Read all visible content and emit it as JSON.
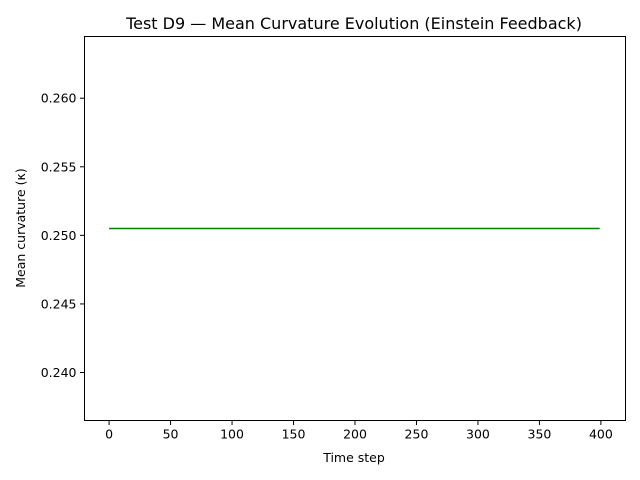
{
  "chart_data": {
    "type": "line",
    "title": "Test D9 — Mean Curvature Evolution (Einstein Feedback)",
    "xlabel": "Time step",
    "ylabel": "Mean curvature (κ)",
    "xlim": [
      -20,
      420
    ],
    "ylim": [
      0.2365,
      0.2645
    ],
    "x_ticks": [
      0,
      50,
      100,
      150,
      200,
      250,
      300,
      350,
      400
    ],
    "y_ticks": [
      0.24,
      0.245,
      0.25,
      0.255,
      0.26
    ],
    "y_tick_labels": [
      "0.240",
      "0.245",
      "0.250",
      "0.255",
      "0.260"
    ],
    "grid": false,
    "series": [
      {
        "color": "#008000",
        "x": [
          0,
          399
        ],
        "y": [
          0.2505,
          0.2505
        ]
      }
    ]
  }
}
